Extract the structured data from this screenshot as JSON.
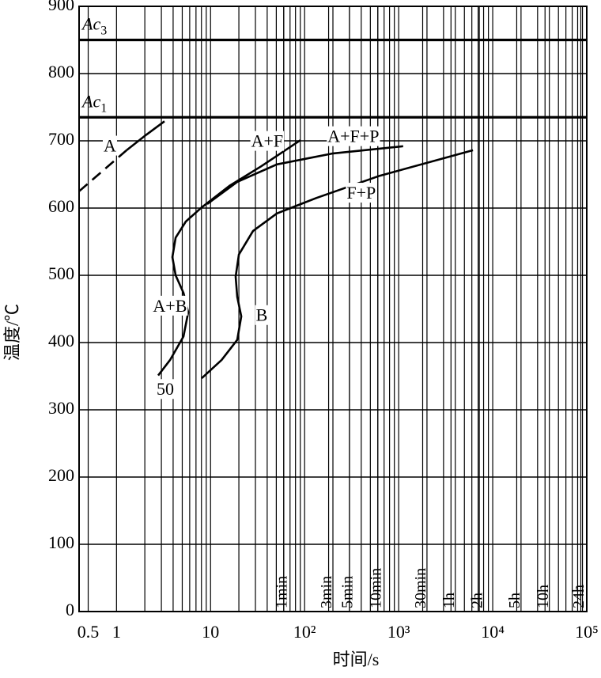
{
  "chart_data": {
    "type": "line",
    "log_x": true,
    "grid": true,
    "xlabel": "时间/s",
    "ylabel": "温度/℃",
    "xlim": [
      0.4,
      100000
    ],
    "ylim": [
      0,
      900
    ],
    "xticks": [
      0.5,
      1,
      10,
      {
        "value": 100,
        "label": "10²"
      },
      {
        "value": 1000,
        "label": "10³"
      },
      {
        "value": 10000,
        "label": "10⁴"
      },
      {
        "value": 100000,
        "label": "10⁵"
      }
    ],
    "xminorticks": [
      2,
      3,
      4,
      5,
      6,
      7,
      8,
      9,
      20,
      30,
      40,
      50,
      60,
      70,
      80,
      90,
      200,
      300,
      400,
      500,
      600,
      700,
      800,
      900,
      2000,
      3000,
      4000,
      5000,
      6000,
      7000,
      8000,
      9000,
      20000,
      30000,
      40000,
      50000,
      60000,
      70000,
      80000,
      90000
    ],
    "yticks": [
      0,
      100,
      200,
      300,
      400,
      500,
      600,
      700,
      800,
      900
    ],
    "time_markers": [
      {
        "value": 60,
        "label": "1min"
      },
      {
        "value": 180,
        "label": "3min"
      },
      {
        "value": 300,
        "label": "5min"
      },
      {
        "value": 600,
        "label": "10min"
      },
      {
        "value": 1800,
        "label": "30min"
      },
      {
        "value": 3600,
        "label": "1h"
      },
      {
        "value": 7200,
        "label": "2h"
      },
      {
        "value": 18000,
        "label": "5h"
      },
      {
        "value": 36000,
        "label": "10h"
      },
      {
        "value": 86400,
        "label": "24h"
      }
    ],
    "hlines": [
      {
        "value": 850,
        "label": "Ac",
        "sub": "3"
      },
      {
        "value": 735,
        "label": "Ac",
        "sub": "1"
      }
    ],
    "series": [
      {
        "color": "#000000",
        "dashed": true,
        "x": [
          0.4,
          1.28
        ],
        "values": [
          625,
          686
        ]
      },
      {
        "color": "#000000",
        "dashed": false,
        "x": [
          1.28,
          2.07,
          3.24
        ],
        "values": [
          686,
          709,
          729
        ]
      },
      {
        "color": "#000000",
        "dashed": false,
        "x": [
          2.77,
          3.71,
          5.15,
          5.79,
          5.15,
          4.25,
          3.93,
          4.25,
          5.46,
          8.05,
          15.9,
          34.4,
          90.6
        ],
        "values": [
          351,
          374,
          409,
          445,
          474,
          500,
          527,
          556,
          580,
          601,
          633,
          662,
          701
        ]
      },
      {
        "color": "#000000",
        "dashed": false,
        "x": [
          9.2,
          19.2,
          50.7,
          196,
          1117
        ],
        "values": [
          606,
          639,
          665,
          681,
          692
        ]
      },
      {
        "color": "#000000",
        "dashed": false,
        "x": [
          8.05,
          13.1,
          19.2,
          21.2,
          19.2,
          18.5,
          20,
          28.3,
          50.7,
          133,
          628,
          6170
        ],
        "values": [
          347,
          374,
          404,
          439,
          468,
          498,
          531,
          566,
          592,
          615,
          648,
          686
        ]
      }
    ],
    "annotations": [
      {
        "text": "A",
        "x": 0.85,
        "y": 690
      },
      {
        "text": "A+F",
        "x": 40,
        "y": 697
      },
      {
        "text": "A+F+P",
        "x": 330,
        "y": 704
      },
      {
        "text": "F+P",
        "x": 400,
        "y": 620
      },
      {
        "text": "A+B",
        "x": 3.7,
        "y": 452
      },
      {
        "text": "B",
        "x": 35,
        "y": 438
      },
      {
        "text": "50",
        "x": 3.3,
        "y": 328
      }
    ]
  }
}
